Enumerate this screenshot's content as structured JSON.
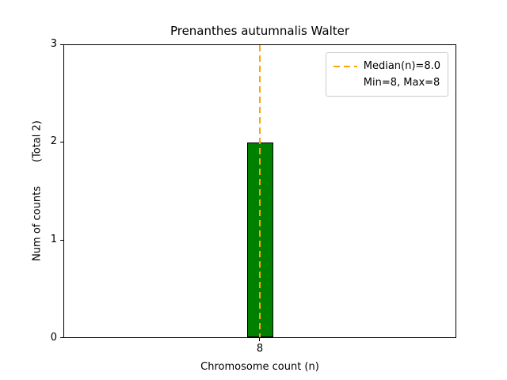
{
  "figure": {
    "title": "Prenanthes autumnalis Walter",
    "xlabel": "Chromosome count (n)",
    "ylabel": "Num of counts",
    "total_label": "(Total 2)"
  },
  "legend": {
    "median_label": "Median(n)=8.0",
    "minmax_label": "Min=8, Max=8"
  },
  "axes": {
    "yticks": [
      "0",
      "1",
      "2",
      "3"
    ],
    "xticks": [
      "8"
    ]
  },
  "colors": {
    "bar_fill": "#008000",
    "bar_edge": "#000000",
    "median_line": "#FFA500",
    "axes_edge": "#000000",
    "legend_border": "#cccccc"
  },
  "chart_data": {
    "type": "bar",
    "categories": [
      8
    ],
    "values": [
      2
    ],
    "title": "Prenanthes autumnalis Walter",
    "xlabel": "Chromosome count (n)",
    "ylabel": "Num of counts",
    "ylim": [
      0,
      3
    ],
    "yticks": [
      0,
      1,
      2,
      3
    ],
    "median": 8.0,
    "min": 8,
    "max": 8,
    "total": 2,
    "legend_entries": [
      "Median(n)=8.0",
      "Min=8, Max=8"
    ],
    "legend_position": "upper right",
    "grid": false,
    "bar_color": "#008000",
    "median_line_color": "#FFA500",
    "median_line_style": "dashed"
  }
}
